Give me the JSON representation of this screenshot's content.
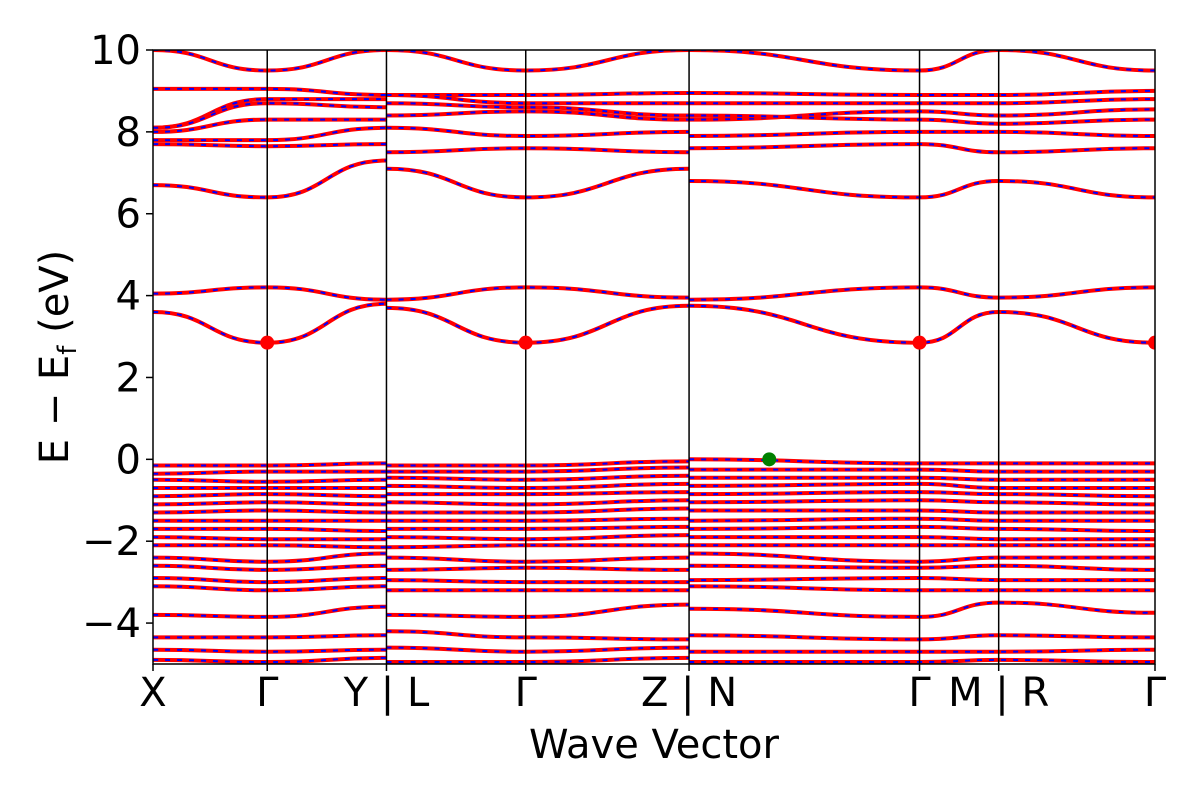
{
  "chart_data": {
    "type": "line",
    "title": "",
    "xlabel": "Wave Vector",
    "ylabel_main": "E − E",
    "ylabel_sub": "f",
    "ylabel_unit": " (eV)",
    "ylim": [
      -5,
      10
    ],
    "yticks": [
      {
        "value": 10,
        "label": "10"
      },
      {
        "value": 8,
        "label": "8"
      },
      {
        "value": 6,
        "label": "6"
      },
      {
        "value": 4,
        "label": "4"
      },
      {
        "value": 2,
        "label": "2"
      },
      {
        "value": 0,
        "label": "0"
      },
      {
        "value": -2,
        "label": "−2"
      },
      {
        "value": -4,
        "label": "−4"
      }
    ],
    "xlim": [
      0,
      1
    ],
    "path_segments": [
      0,
      0.114,
      0.233,
      0.372,
      0.535,
      0.765,
      0.844,
      0.92,
      1.0
    ],
    "segment_breaks": [
      0.233,
      0.535,
      0.844
    ],
    "xticks": [
      {
        "value": 0.0,
        "label": "X"
      },
      {
        "value": 0.114,
        "label": "Γ"
      },
      {
        "value": 0.233,
        "label": "Y | L"
      },
      {
        "value": 0.372,
        "label": "Γ"
      },
      {
        "value": 0.535,
        "label": "Z | N"
      },
      {
        "value": 0.765,
        "label": "Γ"
      },
      {
        "value": 0.844,
        "label": "M | R"
      },
      {
        "value": 1.0,
        "label": "Γ"
      }
    ],
    "series_style": {
      "primary": "#ff0000",
      "overlay": "#0000ff"
    },
    "cbm_color": "#ff0000",
    "vbm_color": "#008000",
    "cbm_points": [
      {
        "x": 0.114,
        "y": 2.85
      },
      {
        "x": 0.372,
        "y": 2.85
      },
      {
        "x": 0.765,
        "y": 2.85
      },
      {
        "x": 1.0,
        "y": 2.85
      }
    ],
    "vbm_points": [
      {
        "x": 0.615,
        "y": 0.0
      }
    ],
    "bands": [
      [
        10.0,
        9.5,
        10.0,
        10.0,
        9.5,
        10.0,
        10.0,
        9.5,
        10.0,
        9.5
      ],
      [
        9.05,
        9.05,
        8.9,
        8.9,
        8.9,
        8.95,
        8.95,
        8.9,
        8.9,
        9.0
      ],
      [
        8.1,
        8.8,
        8.8,
        8.9,
        8.7,
        8.7,
        8.7,
        8.7,
        8.7,
        8.8
      ],
      [
        8.1,
        8.7,
        8.6,
        8.7,
        8.6,
        8.4,
        8.3,
        8.5,
        8.4,
        8.55
      ],
      [
        8.0,
        8.3,
        8.3,
        8.4,
        8.5,
        8.3,
        8.4,
        8.3,
        8.2,
        8.3
      ],
      [
        7.8,
        7.8,
        8.1,
        8.1,
        7.9,
        8.0,
        7.9,
        8.0,
        8.0,
        7.9
      ],
      [
        7.7,
        7.65,
        7.7,
        7.5,
        7.6,
        7.5,
        7.6,
        7.7,
        7.5,
        7.6
      ],
      [
        6.7,
        6.4,
        7.3,
        7.1,
        6.4,
        7.1,
        6.8,
        6.4,
        6.8,
        6.4
      ],
      [
        4.05,
        4.2,
        3.9,
        3.9,
        4.2,
        3.95,
        3.9,
        4.2,
        3.95,
        4.2
      ],
      [
        3.6,
        2.85,
        3.8,
        3.7,
        2.85,
        3.75,
        3.75,
        2.85,
        3.6,
        2.85
      ],
      [
        -0.15,
        -0.15,
        -0.1,
        -0.15,
        -0.15,
        -0.05,
        0.0,
        -0.1,
        -0.1,
        -0.1
      ],
      [
        -0.35,
        -0.3,
        -0.3,
        -0.3,
        -0.3,
        -0.2,
        -0.25,
        -0.25,
        -0.3,
        -0.3
      ],
      [
        -0.5,
        -0.55,
        -0.5,
        -0.45,
        -0.5,
        -0.4,
        -0.45,
        -0.45,
        -0.5,
        -0.5
      ],
      [
        -0.7,
        -0.7,
        -0.7,
        -0.65,
        -0.7,
        -0.6,
        -0.65,
        -0.6,
        -0.7,
        -0.7
      ],
      [
        -0.9,
        -0.85,
        -0.9,
        -0.85,
        -0.85,
        -0.8,
        -0.85,
        -0.8,
        -0.85,
        -0.9
      ],
      [
        -1.1,
        -1.05,
        -1.1,
        -1.05,
        -1.1,
        -1.0,
        -1.05,
        -1.0,
        -1.05,
        -1.1
      ],
      [
        -1.3,
        -1.25,
        -1.3,
        -1.3,
        -1.3,
        -1.2,
        -1.25,
        -1.25,
        -1.3,
        -1.3
      ],
      [
        -1.5,
        -1.5,
        -1.5,
        -1.5,
        -1.5,
        -1.45,
        -1.5,
        -1.45,
        -1.5,
        -1.5
      ],
      [
        -1.7,
        -1.7,
        -1.75,
        -1.7,
        -1.7,
        -1.65,
        -1.7,
        -1.65,
        -1.7,
        -1.75
      ],
      [
        -1.9,
        -1.95,
        -1.95,
        -1.9,
        -1.95,
        -1.85,
        -1.9,
        -1.9,
        -1.95,
        -1.95
      ],
      [
        -2.1,
        -2.1,
        -2.15,
        -2.15,
        -2.1,
        -2.1,
        -2.1,
        -2.1,
        -2.1,
        -2.1
      ],
      [
        -2.4,
        -2.5,
        -2.3,
        -2.4,
        -2.5,
        -2.4,
        -2.3,
        -2.5,
        -2.4,
        -2.4
      ],
      [
        -2.6,
        -2.7,
        -2.6,
        -2.7,
        -2.65,
        -2.7,
        -2.6,
        -2.65,
        -2.6,
        -2.7
      ],
      [
        -2.9,
        -3.0,
        -2.9,
        -2.95,
        -3.0,
        -3.0,
        -2.95,
        -2.9,
        -2.95,
        -2.95
      ],
      [
        -3.1,
        -3.2,
        -3.1,
        -3.2,
        -3.2,
        -3.2,
        -3.1,
        -3.2,
        -3.2,
        -3.2
      ],
      [
        -3.8,
        -3.85,
        -3.6,
        -3.8,
        -3.85,
        -3.55,
        -3.65,
        -3.85,
        -3.5,
        -3.75
      ],
      [
        -4.35,
        -4.35,
        -4.3,
        -4.2,
        -4.35,
        -4.4,
        -4.3,
        -4.4,
        -4.3,
        -4.35
      ],
      [
        -4.65,
        -4.7,
        -4.65,
        -4.6,
        -4.7,
        -4.6,
        -4.7,
        -4.7,
        -4.7,
        -4.65
      ],
      [
        -4.9,
        -4.95,
        -4.85,
        -4.95,
        -4.95,
        -4.85,
        -4.95,
        -4.95,
        -4.9,
        -4.95
      ]
    ]
  }
}
